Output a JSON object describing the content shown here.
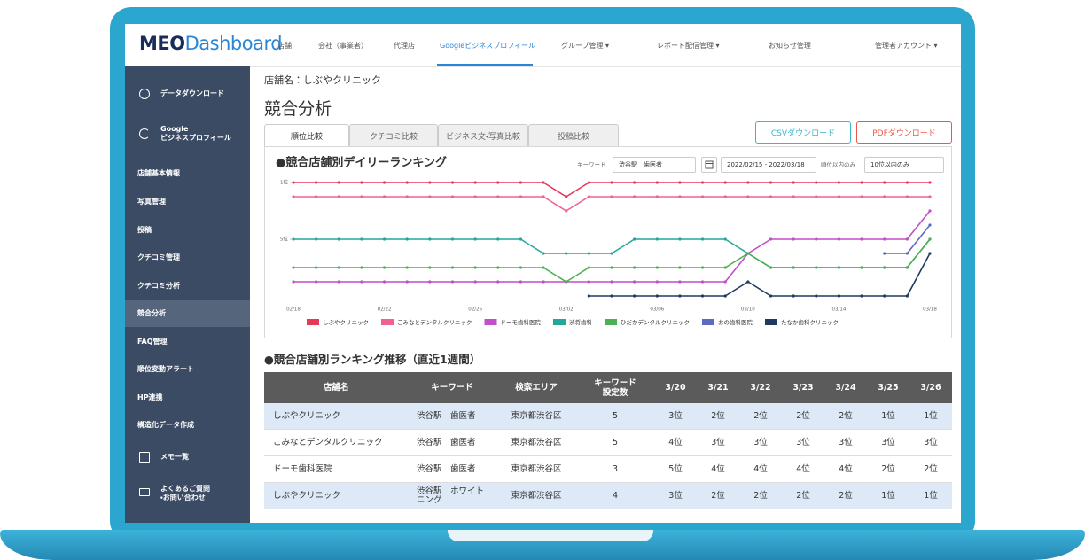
{
  "nav": {
    "logo_a": "MEO",
    "logo_b": "Dashboard",
    "items": [
      "店舗",
      "会社（事業者）",
      "代理店",
      "Googleビジネスプロフィール",
      "グループ管理 ▾",
      "レポート配信管理 ▾",
      "お知らせ管理"
    ],
    "account": "管理者アカウント ▾"
  },
  "sidebar": [
    "データダウンロード",
    "Google\nビジネスプロフィール",
    "店舗基本情報",
    "写真管理",
    "投稿",
    "クチコミ管理",
    "クチコミ分析",
    "競合分析",
    "FAQ管理",
    "順位変動アラート",
    "HP連携",
    "構造化データ作成",
    "メモ一覧",
    "よくあるご質問\n・お問い合わせ"
  ],
  "store_label": "店舗名：しぶやクリニック",
  "page_title": "競合分析",
  "tabs": [
    "順位比較",
    "クチコミ比較",
    "ビジネス文・写真比較",
    "投稿比較"
  ],
  "buttons": {
    "csv": "CSVダウンロード",
    "pdf": "PDFダウンロード"
  },
  "filters": {
    "keyword_label": "キーワード",
    "keyword": "渋谷駅　歯医者",
    "date_range": "2022/02/15 - 2022/03/18",
    "rank_label": "順位以内のみ",
    "rank_option": "10位以内のみ"
  },
  "chart_data": {
    "type": "line",
    "title": "●競合店舗別デイリーランキング",
    "categories": [
      "02/18",
      null,
      null,
      null,
      "02/22",
      null,
      null,
      null,
      "02/26",
      null,
      null,
      null,
      "03/02",
      null,
      null,
      null,
      "03/06",
      null,
      null,
      null,
      "03/10",
      null,
      null,
      null,
      "03/14",
      null,
      null,
      null,
      "03/18"
    ],
    "ylim": [
      1,
      9.5
    ],
    "y_reversed": true,
    "yticks": [
      {
        "value": 1,
        "label": "1位"
      },
      {
        "value": 5,
        "label": "5位"
      }
    ],
    "series": [
      {
        "name": "しぶやクリニック",
        "color": "#e8385a",
        "values": [
          1,
          1,
          1,
          1,
          1,
          1,
          1,
          1,
          1,
          1,
          1,
          1,
          2,
          1,
          1,
          1,
          1,
          1,
          1,
          1,
          1,
          1,
          1,
          1,
          1,
          1,
          1,
          1,
          1
        ]
      },
      {
        "name": "こみなとデンタルクリニック",
        "color": "#f06292",
        "values": [
          2,
          2,
          2,
          2,
          2,
          2,
          2,
          2,
          2,
          2,
          2,
          2,
          3,
          2,
          2,
          2,
          2,
          2,
          2,
          2,
          2,
          2,
          2,
          2,
          2,
          2,
          2,
          2,
          2
        ]
      },
      {
        "name": "ドーモ歯科医院",
        "color": "#c04fc8",
        "values": [
          8,
          8,
          8,
          8,
          8,
          8,
          8,
          8,
          8,
          8,
          8,
          8,
          8,
          8,
          8,
          8,
          8,
          8,
          8,
          8,
          6,
          5,
          5,
          5,
          5,
          5,
          5,
          5,
          3
        ]
      },
      {
        "name": "渋将歯科",
        "color": "#26a69a",
        "values": [
          5,
          5,
          5,
          5,
          5,
          5,
          5,
          5,
          5,
          5,
          5,
          6,
          6,
          6,
          6,
          5,
          5,
          5,
          5,
          5,
          6,
          7,
          7,
          7,
          7,
          7,
          7,
          7,
          5
        ]
      },
      {
        "name": "ひだかデンタルクリニック",
        "color": "#4caf50",
        "values": [
          7,
          7,
          7,
          7,
          7,
          7,
          7,
          7,
          7,
          7,
          7,
          7,
          8,
          7,
          7,
          7,
          7,
          7,
          7,
          7,
          6,
          7,
          7,
          7,
          7,
          7,
          7,
          7,
          5
        ]
      },
      {
        "name": "おの歯科医院",
        "color": "#5c6bc0",
        "values": [
          null,
          null,
          null,
          null,
          null,
          null,
          null,
          null,
          null,
          null,
          null,
          null,
          null,
          null,
          null,
          null,
          null,
          null,
          null,
          null,
          null,
          null,
          null,
          null,
          null,
          null,
          6,
          6,
          4
        ]
      },
      {
        "name": "たなか歯科クリニック",
        "color": "#1f3a60",
        "values": [
          null,
          null,
          null,
          null,
          null,
          null,
          null,
          null,
          null,
          null,
          null,
          null,
          null,
          9,
          9,
          9,
          9,
          9,
          9,
          9,
          8,
          9,
          9,
          9,
          9,
          9,
          9,
          9,
          6
        ]
      }
    ]
  },
  "table": {
    "title": "●競合店舗別ランキング推移（直近1週間）",
    "header": [
      "店舗名",
      "キーワード",
      "検索エリア",
      "キーワード\n設定数",
      "3/20",
      "3/21",
      "3/22",
      "3/23",
      "3/24",
      "3/25",
      "3/26"
    ],
    "rows": [
      [
        "しぶやクリニック",
        "渋谷駅　歯医者",
        "東京都渋谷区",
        5,
        "3位",
        "2位",
        "2位",
        "2位",
        "2位",
        "1位",
        "1位"
      ],
      [
        "こみなとデンタルクリニック",
        "渋谷駅　歯医者",
        "東京都渋谷区",
        5,
        "4位",
        "3位",
        "3位",
        "3位",
        "3位",
        "3位",
        "3位"
      ],
      [
        "ドーモ歯科医院",
        "渋谷駅　歯医者",
        "東京都渋谷区",
        3,
        "5位",
        "4位",
        "4位",
        "4位",
        "4位",
        "2位",
        "2位"
      ],
      [
        "しぶやクリニック",
        "渋谷駅　ホワイト\nニング",
        "東京都渋谷区",
        4,
        "3位",
        "2位",
        "2位",
        "2位",
        "2位",
        "1位",
        "1位"
      ]
    ]
  }
}
